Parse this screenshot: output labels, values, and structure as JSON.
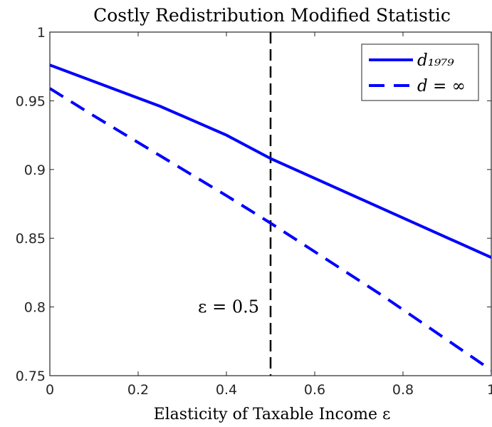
{
  "chart_data": {
    "type": "line",
    "title": "Costly Redistribution Modified Statistic",
    "x_label": "Elasticity of Taxable Income ε",
    "x": [
      0,
      0.1,
      0.25,
      0.4,
      0.5,
      0.75,
      1
    ],
    "series": [
      {
        "name": "d₁₉₇₉",
        "color": "#0000ff",
        "dash": false,
        "values": [
          0.976,
          0.964,
          0.946,
          0.925,
          0.908,
          0.872,
          0.836
        ]
      },
      {
        "name": "d = ∞",
        "color": "#0000ff",
        "dash": true,
        "values": [
          0.959,
          0.939,
          0.91,
          0.881,
          0.861,
          0.809,
          0.754
        ]
      }
    ],
    "vline": 0.5,
    "annotation": "ε = 0.5",
    "xlim": [
      0,
      1
    ],
    "xticks": [
      0,
      0.2,
      0.4,
      0.6,
      0.8,
      1
    ],
    "ylim": [
      0.75,
      1
    ],
    "yticks": [
      0.75,
      0.8,
      0.85,
      0.9,
      0.95,
      1
    ],
    "legend": "top-right"
  }
}
